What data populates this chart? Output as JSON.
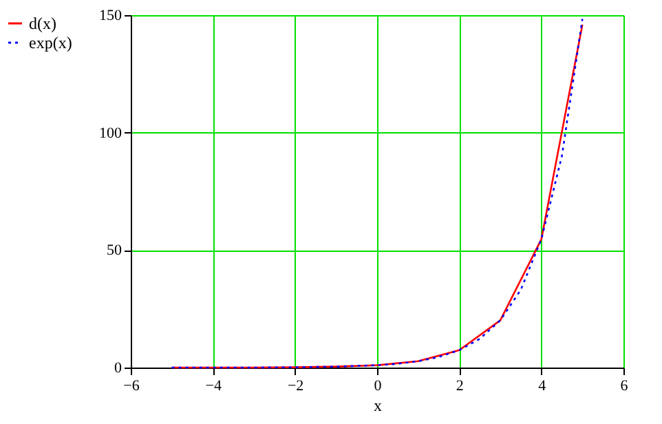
{
  "chart_data": {
    "type": "line",
    "xlabel": "x",
    "xlim": [
      -6,
      6
    ],
    "xticks": [
      -6,
      -4,
      -2,
      0,
      2,
      4,
      6
    ],
    "ylim": [
      0,
      150
    ],
    "yticks": [
      0,
      50,
      100,
      150
    ],
    "grid": true,
    "legend": "left",
    "marker": "none",
    "series": [
      {
        "name": "d(x)",
        "color": "#ff0000",
        "line_style": "solid",
        "x": [
          -5,
          -4,
          -3,
          -2,
          -1,
          0,
          1,
          2,
          3,
          4,
          5
        ],
        "values": [
          0,
          0,
          0,
          0.1,
          0.4,
          1,
          2.7,
          7.4,
          20.1,
          54.6,
          146
        ]
      },
      {
        "name": "exp(x)",
        "color": "#0000ff",
        "line_style": "dotted",
        "x": [
          -5,
          -4,
          -3,
          -2,
          -1,
          0,
          0.5,
          1,
          1.5,
          2,
          2.5,
          3,
          3.5,
          4,
          4.5,
          5
        ],
        "values": [
          0,
          0,
          0,
          0.1,
          0.4,
          1,
          1.6,
          2.7,
          4.5,
          7.4,
          12.2,
          20.1,
          33.1,
          54.6,
          90,
          148.4
        ]
      }
    ]
  }
}
